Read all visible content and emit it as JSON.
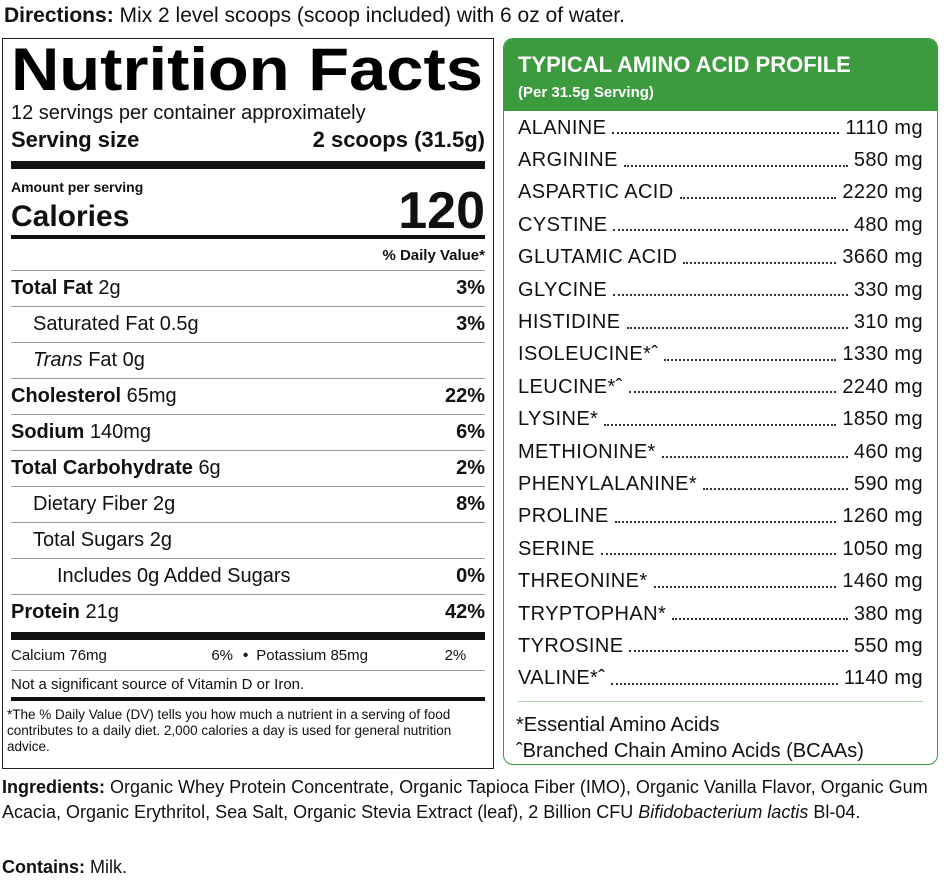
{
  "directions": {
    "label": "Directions:",
    "text": "Mix 2 level scoops (scoop included) with 6 oz of water."
  },
  "nutrition_facts": {
    "title": "Nutrition Facts",
    "servings": "12 servings per container approximately",
    "serving_size_label": "Serving size",
    "serving_size": "2 scoops (31.5g)",
    "amount_per_serving": "Amount per serving",
    "calories_label": "Calories",
    "calories": 120,
    "dv_header": "% Daily Value*",
    "rows": [
      {
        "name": "Total Fat",
        "amount": "2g",
        "dv": "3%"
      },
      {
        "name": "Saturated Fat",
        "amount": "0.5g",
        "dv": "3%"
      },
      {
        "name_italic": "Trans",
        "name": "Fat",
        "amount": "0g"
      },
      {
        "name": "Cholesterol",
        "amount": "65mg",
        "dv": "22%"
      },
      {
        "name": "Sodium",
        "amount": "140mg",
        "dv": "6%"
      },
      {
        "name": "Total Carbohydrate",
        "amount": "6g",
        "dv": "2%"
      },
      {
        "name": "Dietary Fiber",
        "amount": "2g",
        "dv": "8%"
      },
      {
        "name": "Total Sugars",
        "amount": "2g"
      },
      {
        "name": "Includes 0g Added Sugars",
        "dv": "0%"
      },
      {
        "name": "Protein",
        "amount": "21g",
        "dv": "42%"
      }
    ],
    "minerals": [
      {
        "name": "Calcium",
        "amount": "76mg",
        "dv": "6%"
      },
      {
        "name": "Potassium",
        "amount": "85mg",
        "dv": "2%"
      }
    ],
    "note": "Not a significant source of Vitamin D or Iron.",
    "footnote": "*The % Daily Value (DV) tells you how much a nutrient in a serving of food contributes to a daily diet. 2,000 calories a day is used for general nutrition advice."
  },
  "amino_profile": {
    "title": "TYPICAL AMINO ACID PROFILE",
    "subtitle": "(Per 31.5g Serving)",
    "rows": [
      {
        "name": "ALANINE",
        "amount": "1110 mg"
      },
      {
        "name": "ARGININE",
        "amount": "580 mg"
      },
      {
        "name": "ASPARTIC ACID",
        "amount": "2220 mg"
      },
      {
        "name": "CYSTINE",
        "amount": "480 mg"
      },
      {
        "name": "GLUTAMIC ACID",
        "amount": "3660 mg"
      },
      {
        "name": "GLYCINE",
        "amount": "330 mg"
      },
      {
        "name": "HISTIDINE",
        "amount": "310 mg"
      },
      {
        "name": "ISOLEUCINE*ˆ",
        "amount": "1330 mg"
      },
      {
        "name": "LEUCINE*ˆ",
        "amount": "2240 mg"
      },
      {
        "name": "LYSINE*",
        "amount": "1850 mg"
      },
      {
        "name": "METHIONINE*",
        "amount": "460 mg"
      },
      {
        "name": "PHENYLALANINE*",
        "amount": "590 mg"
      },
      {
        "name": "PROLINE",
        "amount": "1260 mg"
      },
      {
        "name": "SERINE",
        "amount": "1050 mg"
      },
      {
        "name": "THREONINE*",
        "amount": "1460 mg"
      },
      {
        "name": "TRYPTOPHAN*",
        "amount": "380 mg"
      },
      {
        "name": "TYROSINE",
        "amount": "550 mg"
      },
      {
        "name": "VALINE*ˆ",
        "amount": "1140 mg"
      }
    ],
    "notes": [
      "*Essential Amino Acids",
      "ˆBranched Chain Amino Acids (BCAAs)"
    ]
  },
  "ingredients": {
    "label": "Ingredients:",
    "text": "Organic Whey Protein Concentrate, Organic Tapioca Fiber (IMO), Organic Vanilla Flavor, Organic Gum Acacia, Organic Erythritol, Sea Salt, Organic Stevia Extract (leaf), 2 Billion CFU",
    "text_italic": "Bifidobacterium lactis",
    "text_end": "Bl-04."
  },
  "contains": {
    "label": "Contains:",
    "text": "Milk."
  }
}
